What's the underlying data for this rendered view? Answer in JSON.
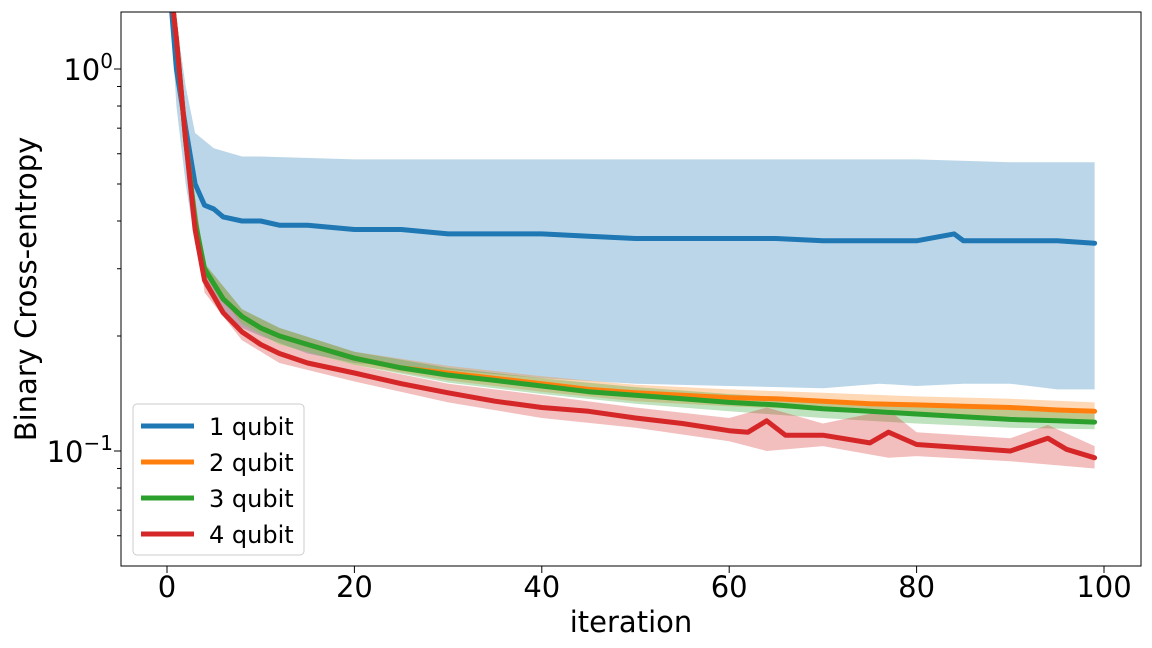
{
  "chart_data": {
    "type": "line",
    "title": "",
    "xlabel": "iteration",
    "ylabel": "Binary Cross-entropy",
    "yscale": "log",
    "xlim": [
      -5,
      104
    ],
    "ylim": [
      0.05,
      1.4
    ],
    "xticks": [
      0,
      20,
      40,
      60,
      80,
      100
    ],
    "xtick_labels": [
      "0",
      "20",
      "40",
      "60",
      "80",
      "100"
    ],
    "yticks": [
      1.0,
      0.1
    ],
    "ytick_labels": [
      {
        "base": "10",
        "exp": "0"
      },
      {
        "base": "10",
        "exp": "−1"
      }
    ],
    "grid": false,
    "legend_position": "lower-left",
    "legend_entries": [
      "1 qubit",
      "2 qubit",
      "3 qubit",
      "4 qubit"
    ],
    "series": [
      {
        "name": "1 qubit",
        "color": "#1f77b4",
        "band_color": "#1f77b4",
        "band_opacity": 0.3,
        "mean_points": [
          [
            0,
            2.0
          ],
          [
            1,
            1.0
          ],
          [
            2,
            0.7
          ],
          [
            3,
            0.5
          ],
          [
            4,
            0.44
          ],
          [
            5,
            0.43
          ],
          [
            6,
            0.41
          ],
          [
            8,
            0.4
          ],
          [
            10,
            0.4
          ],
          [
            12,
            0.39
          ],
          [
            15,
            0.39
          ],
          [
            20,
            0.38
          ],
          [
            25,
            0.38
          ],
          [
            30,
            0.37
          ],
          [
            35,
            0.37
          ],
          [
            40,
            0.37
          ],
          [
            45,
            0.365
          ],
          [
            50,
            0.36
          ],
          [
            55,
            0.36
          ],
          [
            60,
            0.36
          ],
          [
            65,
            0.36
          ],
          [
            70,
            0.355
          ],
          [
            75,
            0.355
          ],
          [
            80,
            0.355
          ],
          [
            84,
            0.37
          ],
          [
            85,
            0.355
          ],
          [
            90,
            0.355
          ],
          [
            95,
            0.355
          ],
          [
            99,
            0.35
          ]
        ],
        "upper_points": [
          [
            0,
            2.0
          ],
          [
            2,
            0.9
          ],
          [
            3,
            0.68
          ],
          [
            5,
            0.62
          ],
          [
            8,
            0.59
          ],
          [
            10,
            0.59
          ],
          [
            20,
            0.58
          ],
          [
            30,
            0.58
          ],
          [
            40,
            0.58
          ],
          [
            50,
            0.58
          ],
          [
            60,
            0.58
          ],
          [
            70,
            0.58
          ],
          [
            80,
            0.58
          ],
          [
            90,
            0.57
          ],
          [
            99,
            0.57
          ]
        ],
        "lower_points": [
          [
            0,
            2.0
          ],
          [
            1,
            0.8
          ],
          [
            2,
            0.5
          ],
          [
            3,
            0.35
          ],
          [
            4,
            0.27
          ],
          [
            6,
            0.23
          ],
          [
            8,
            0.21
          ],
          [
            10,
            0.2
          ],
          [
            15,
            0.18
          ],
          [
            20,
            0.17
          ],
          [
            30,
            0.163
          ],
          [
            40,
            0.155
          ],
          [
            50,
            0.15
          ],
          [
            60,
            0.148
          ],
          [
            70,
            0.146
          ],
          [
            76,
            0.15
          ],
          [
            80,
            0.148
          ],
          [
            85,
            0.15
          ],
          [
            90,
            0.15
          ],
          [
            95,
            0.145
          ],
          [
            99,
            0.145
          ]
        ]
      },
      {
        "name": "2 qubit",
        "color": "#ff7f0e",
        "band_color": "#ff7f0e",
        "band_opacity": 0.3,
        "mean_points": [
          [
            0,
            2.0
          ],
          [
            1,
            1.2
          ],
          [
            2,
            0.65
          ],
          [
            3,
            0.4
          ],
          [
            4,
            0.3
          ],
          [
            6,
            0.25
          ],
          [
            8,
            0.225
          ],
          [
            10,
            0.21
          ],
          [
            12,
            0.2
          ],
          [
            15,
            0.19
          ],
          [
            20,
            0.175
          ],
          [
            25,
            0.165
          ],
          [
            30,
            0.16
          ],
          [
            35,
            0.155
          ],
          [
            40,
            0.15
          ],
          [
            45,
            0.145
          ],
          [
            50,
            0.142
          ],
          [
            55,
            0.14
          ],
          [
            60,
            0.138
          ],
          [
            65,
            0.137
          ],
          [
            70,
            0.135
          ],
          [
            75,
            0.133
          ],
          [
            80,
            0.132
          ],
          [
            85,
            0.131
          ],
          [
            90,
            0.13
          ],
          [
            95,
            0.128
          ],
          [
            99,
            0.127
          ]
        ],
        "upper_points": [
          [
            0,
            2.0
          ],
          [
            2,
            0.68
          ],
          [
            4,
            0.31
          ],
          [
            8,
            0.235
          ],
          [
            12,
            0.21
          ],
          [
            20,
            0.182
          ],
          [
            30,
            0.167
          ],
          [
            40,
            0.157
          ],
          [
            50,
            0.149
          ],
          [
            60,
            0.145
          ],
          [
            70,
            0.142
          ],
          [
            80,
            0.139
          ],
          [
            90,
            0.137
          ],
          [
            99,
            0.134
          ]
        ],
        "lower_points": [
          [
            0,
            2.0
          ],
          [
            2,
            0.62
          ],
          [
            4,
            0.29
          ],
          [
            8,
            0.215
          ],
          [
            12,
            0.19
          ],
          [
            20,
            0.168
          ],
          [
            30,
            0.153
          ],
          [
            40,
            0.143
          ],
          [
            50,
            0.135
          ],
          [
            60,
            0.131
          ],
          [
            70,
            0.128
          ],
          [
            80,
            0.125
          ],
          [
            90,
            0.123
          ],
          [
            99,
            0.12
          ]
        ]
      },
      {
        "name": "3 qubit",
        "color": "#2ca02c",
        "band_color": "#2ca02c",
        "band_opacity": 0.3,
        "mean_points": [
          [
            0,
            2.0
          ],
          [
            1,
            1.2
          ],
          [
            2,
            0.65
          ],
          [
            3,
            0.4
          ],
          [
            4,
            0.3
          ],
          [
            6,
            0.25
          ],
          [
            8,
            0.225
          ],
          [
            10,
            0.21
          ],
          [
            12,
            0.2
          ],
          [
            15,
            0.19
          ],
          [
            20,
            0.175
          ],
          [
            25,
            0.165
          ],
          [
            30,
            0.158
          ],
          [
            35,
            0.153
          ],
          [
            40,
            0.148
          ],
          [
            45,
            0.143
          ],
          [
            50,
            0.14
          ],
          [
            55,
            0.137
          ],
          [
            60,
            0.134
          ],
          [
            65,
            0.132
          ],
          [
            70,
            0.129
          ],
          [
            75,
            0.127
          ],
          [
            80,
            0.125
          ],
          [
            85,
            0.123
          ],
          [
            90,
            0.121
          ],
          [
            95,
            0.12
          ],
          [
            99,
            0.119
          ]
        ],
        "upper_points": [
          [
            0,
            2.0
          ],
          [
            2,
            0.68
          ],
          [
            4,
            0.31
          ],
          [
            8,
            0.235
          ],
          [
            12,
            0.21
          ],
          [
            20,
            0.182
          ],
          [
            30,
            0.165
          ],
          [
            40,
            0.155
          ],
          [
            50,
            0.147
          ],
          [
            60,
            0.141
          ],
          [
            70,
            0.136
          ],
          [
            80,
            0.132
          ],
          [
            90,
            0.128
          ],
          [
            99,
            0.125
          ]
        ],
        "lower_points": [
          [
            0,
            2.0
          ],
          [
            2,
            0.62
          ],
          [
            4,
            0.29
          ],
          [
            8,
            0.215
          ],
          [
            12,
            0.19
          ],
          [
            20,
            0.168
          ],
          [
            30,
            0.151
          ],
          [
            40,
            0.141
          ],
          [
            50,
            0.133
          ],
          [
            60,
            0.127
          ],
          [
            70,
            0.122
          ],
          [
            80,
            0.118
          ],
          [
            90,
            0.115
          ],
          [
            99,
            0.114
          ]
        ]
      },
      {
        "name": "4 qubit",
        "color": "#d62728",
        "band_color": "#d62728",
        "band_opacity": 0.3,
        "mean_points": [
          [
            0,
            2.0
          ],
          [
            1,
            1.2
          ],
          [
            2,
            0.65
          ],
          [
            3,
            0.38
          ],
          [
            4,
            0.28
          ],
          [
            6,
            0.23
          ],
          [
            8,
            0.205
          ],
          [
            10,
            0.19
          ],
          [
            12,
            0.18
          ],
          [
            15,
            0.17
          ],
          [
            20,
            0.16
          ],
          [
            25,
            0.15
          ],
          [
            30,
            0.142
          ],
          [
            35,
            0.135
          ],
          [
            40,
            0.13
          ],
          [
            45,
            0.127
          ],
          [
            50,
            0.122
          ],
          [
            55,
            0.118
          ],
          [
            60,
            0.113
          ],
          [
            62,
            0.112
          ],
          [
            64,
            0.12
          ],
          [
            66,
            0.11
          ],
          [
            70,
            0.11
          ],
          [
            75,
            0.105
          ],
          [
            77,
            0.112
          ],
          [
            80,
            0.104
          ],
          [
            85,
            0.102
          ],
          [
            90,
            0.1
          ],
          [
            94,
            0.108
          ],
          [
            96,
            0.101
          ],
          [
            99,
            0.096
          ]
        ],
        "upper_points": [
          [
            0,
            2.0
          ],
          [
            2,
            0.68
          ],
          [
            4,
            0.3
          ],
          [
            8,
            0.215
          ],
          [
            12,
            0.19
          ],
          [
            20,
            0.168
          ],
          [
            30,
            0.15
          ],
          [
            40,
            0.14
          ],
          [
            50,
            0.13
          ],
          [
            60,
            0.122
          ],
          [
            64,
            0.13
          ],
          [
            70,
            0.118
          ],
          [
            77,
            0.128
          ],
          [
            80,
            0.112
          ],
          [
            90,
            0.108
          ],
          [
            94,
            0.117
          ],
          [
            99,
            0.103
          ]
        ],
        "lower_points": [
          [
            0,
            2.0
          ],
          [
            2,
            0.62
          ],
          [
            4,
            0.26
          ],
          [
            8,
            0.195
          ],
          [
            12,
            0.17
          ],
          [
            20,
            0.152
          ],
          [
            30,
            0.134
          ],
          [
            40,
            0.122
          ],
          [
            50,
            0.115
          ],
          [
            60,
            0.106
          ],
          [
            64,
            0.1
          ],
          [
            70,
            0.103
          ],
          [
            77,
            0.096
          ],
          [
            80,
            0.097
          ],
          [
            90,
            0.094
          ],
          [
            99,
            0.09
          ]
        ]
      }
    ]
  }
}
